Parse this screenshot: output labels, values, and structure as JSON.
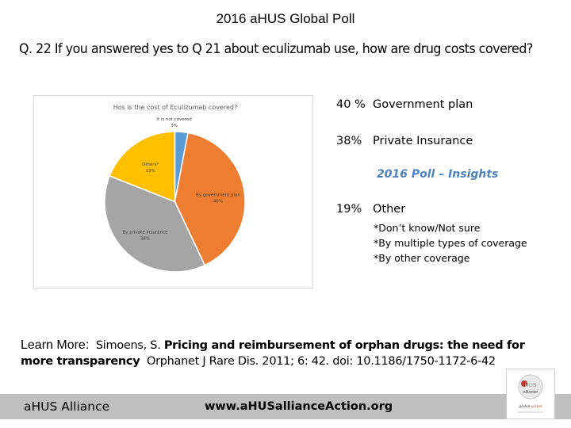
{
  "header": {
    "title": "2016 aHUS Global Poll",
    "question": "Q. 22   If you answered yes to Q 21 about eculizumab use, how are drug costs covered?"
  },
  "chart_data": {
    "type": "pie",
    "title": "Hos is the cost of Eculizumab covered?",
    "slices": [
      {
        "label": "It is not covered",
        "value": 3,
        "value_label": "3%",
        "color": "#5b9bd5"
      },
      {
        "label": "By government plan",
        "value": 40,
        "value_label": "40%",
        "color": "#ed7d31"
      },
      {
        "label": "By private insurance",
        "value": 38,
        "value_label": "38%",
        "color": "#a5a5a5"
      },
      {
        "label": "Others*",
        "value": 19,
        "value_label": "19%",
        "color": "#ffc000"
      }
    ],
    "start": "top",
    "direction": "clockwise"
  },
  "summary": {
    "government_pct": "40 %",
    "government_label": "Government plan",
    "private_pct": "38%",
    "private_label": "Private Insurance",
    "insights": "2016 Poll – Insights",
    "other_pct": "19%",
    "other_label": "Other",
    "other_items": [
      "*Don’t know/Not sure",
      "*By multiple types of coverage",
      "*By other coverage"
    ],
    "insights_color": "#4f81bd"
  },
  "reference": {
    "prefix": "Learn More:",
    "author": "Simoens, S.",
    "title_bold": "Pricing and reimbursement of orphan drugs: the need for more transparency",
    "citation": "Orphanet J Rare Dis. 2011; 6: 42. doi:  10.1186/1750-1172-6-42"
  },
  "footer": {
    "org": "aHUS Alliance",
    "url": "www.aHUSallianceAction.org",
    "logo_text": [
      "aHUS",
      "alliance",
      "global action"
    ]
  }
}
